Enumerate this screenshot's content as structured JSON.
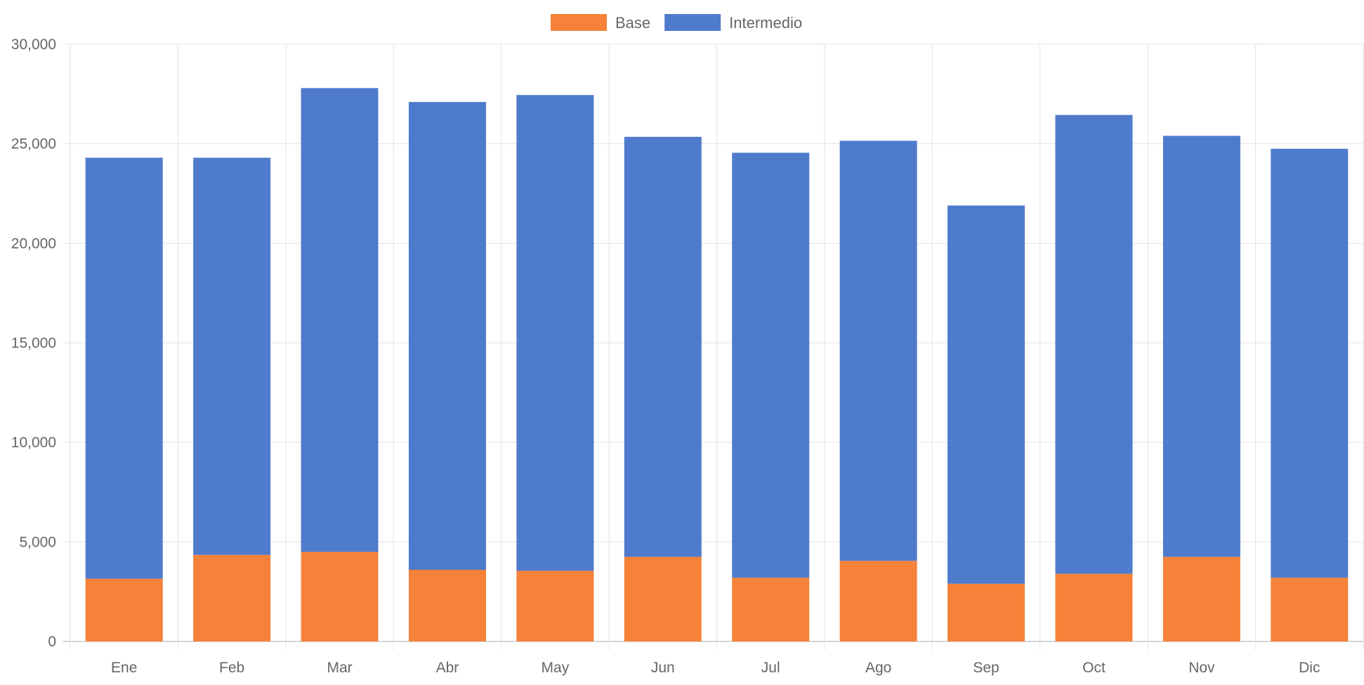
{
  "chart_data": {
    "type": "bar",
    "stacked": true,
    "categories": [
      "Ene",
      "Feb",
      "Mar",
      "Abr",
      "May",
      "Jun",
      "Jul",
      "Ago",
      "Sep",
      "Oct",
      "Nov",
      "Dic"
    ],
    "series": [
      {
        "name": "Base",
        "color": "#f58238",
        "values": [
          3150,
          4350,
          4500,
          3600,
          3550,
          4250,
          3200,
          4050,
          2900,
          3400,
          4250,
          3200
        ]
      },
      {
        "name": "Intermedio",
        "color": "#4f7bcc",
        "values": [
          21150,
          19950,
          23300,
          23500,
          23900,
          21100,
          21350,
          21100,
          19000,
          23050,
          21150,
          21550
        ]
      }
    ],
    "ylim": [
      0,
      30000
    ],
    "yticks": [
      "0",
      "5,000",
      "10,000",
      "15,000",
      "20,000",
      "25,000",
      "30,000"
    ],
    "grid": true,
    "legend": "top"
  }
}
